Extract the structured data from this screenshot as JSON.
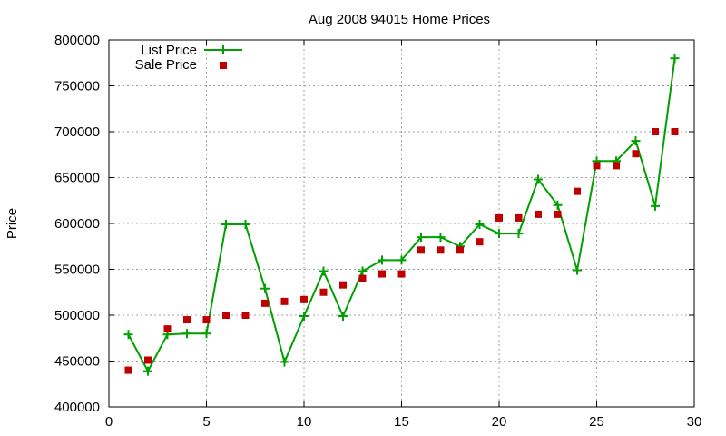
{
  "chart_data": {
    "type": "line",
    "title": "Aug 2008 94015 Home Prices",
    "xlabel": "",
    "ylabel": "Price",
    "xlim": [
      0,
      30
    ],
    "ylim": [
      400000,
      800000
    ],
    "xticks": [
      0,
      5,
      10,
      15,
      20,
      25,
      30
    ],
    "yticks": [
      400000,
      450000,
      500000,
      550000,
      600000,
      650000,
      700000,
      750000,
      800000
    ],
    "grid": true,
    "legend_position": "top-left",
    "series": [
      {
        "name": "List Price",
        "style": "line+cross",
        "color": "#00a000",
        "x": [
          1,
          2,
          3,
          4,
          5,
          6,
          7,
          8,
          9,
          10,
          11,
          12,
          13,
          14,
          15,
          16,
          17,
          18,
          19,
          20,
          21,
          22,
          23,
          24,
          25,
          26,
          27,
          28,
          29
        ],
        "y": [
          479000,
          439000,
          479000,
          480000,
          480000,
          599000,
          599000,
          529000,
          449000,
          499000,
          548000,
          499000,
          548000,
          560000,
          560000,
          585000,
          585000,
          575000,
          599000,
          589000,
          589000,
          648000,
          620000,
          549000,
          668000,
          668000,
          690000,
          619000,
          780000
        ]
      },
      {
        "name": "Sale Price",
        "style": "square-points",
        "color": "#c00000",
        "x": [
          1,
          2,
          3,
          4,
          5,
          6,
          7,
          8,
          9,
          10,
          11,
          12,
          13,
          14,
          15,
          16,
          17,
          18,
          19,
          20,
          21,
          22,
          23,
          24,
          25,
          26,
          27,
          28,
          29
        ],
        "y": [
          440000,
          451000,
          485000,
          495000,
          495000,
          500000,
          500000,
          513000,
          515000,
          517000,
          525000,
          533000,
          540000,
          545000,
          545000,
          571000,
          571000,
          571000,
          580000,
          606000,
          606000,
          610000,
          610000,
          635000,
          663000,
          663000,
          676000,
          700000,
          700000
        ]
      }
    ]
  }
}
